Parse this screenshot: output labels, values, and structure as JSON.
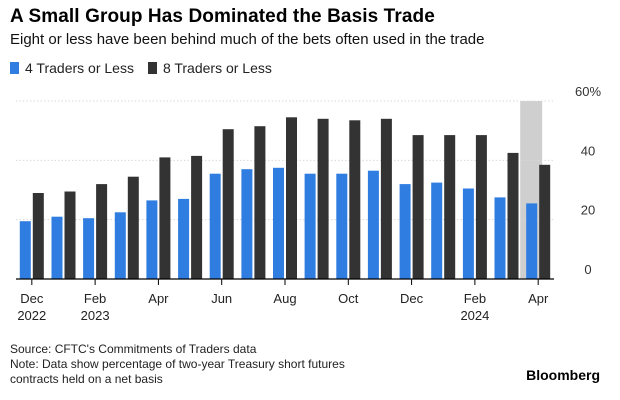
{
  "title": "A Small Group Has Dominated the Basis Trade",
  "subtitle": "Eight or less have been behind much of the bets often used in the trade",
  "colors": {
    "series_4": "#2f7de1",
    "series_8": "#333333",
    "highlight": "#cfcfcf",
    "grid": "#d9d9d9",
    "axis": "#000000"
  },
  "legend": [
    {
      "label": "4 Traders or Less",
      "color": "#2f7de1"
    },
    {
      "label": "8 Traders or Less",
      "color": "#333333"
    }
  ],
  "footnotes": {
    "source": "Source: CFTC's Commitments of Traders data",
    "note_line1": "Note: Data show percentage of two-year Treasury short futures",
    "note_line2": "contracts held on a net basis"
  },
  "brand": "Bloomberg",
  "chart_data": {
    "type": "bar",
    "y_unit_label": "60%",
    "yticks": [
      0,
      20,
      40,
      60
    ],
    "ylim": [
      0,
      60
    ],
    "grid": true,
    "legend_position": "top-left",
    "x_tick_labels": [
      {
        "label": "Dec",
        "year": "2022"
      },
      {
        "label": "Feb",
        "year": "2023"
      },
      {
        "label": "Apr",
        "year": ""
      },
      {
        "label": "Jun",
        "year": ""
      },
      {
        "label": "Aug",
        "year": ""
      },
      {
        "label": "Oct",
        "year": ""
      },
      {
        "label": "Dec",
        "year": ""
      },
      {
        "label": "Feb",
        "year": "2024"
      },
      {
        "label": "Apr",
        "year": ""
      }
    ],
    "highlight_period_index": 16,
    "series": [
      {
        "name": "4 Traders or Less",
        "values": [
          19.5,
          21,
          20.5,
          22.5,
          26.5,
          27,
          35.5,
          37,
          37.5,
          35.5,
          35.5,
          36.5,
          32,
          32.5,
          30.5,
          27.5,
          25.5
        ]
      },
      {
        "name": "8 Traders or Less",
        "values": [
          29,
          29.5,
          32,
          34.5,
          41,
          41.5,
          50.5,
          51.5,
          54.5,
          54,
          53.5,
          54,
          48.5,
          48.5,
          48.5,
          42.5,
          38.5
        ]
      }
    ]
  }
}
